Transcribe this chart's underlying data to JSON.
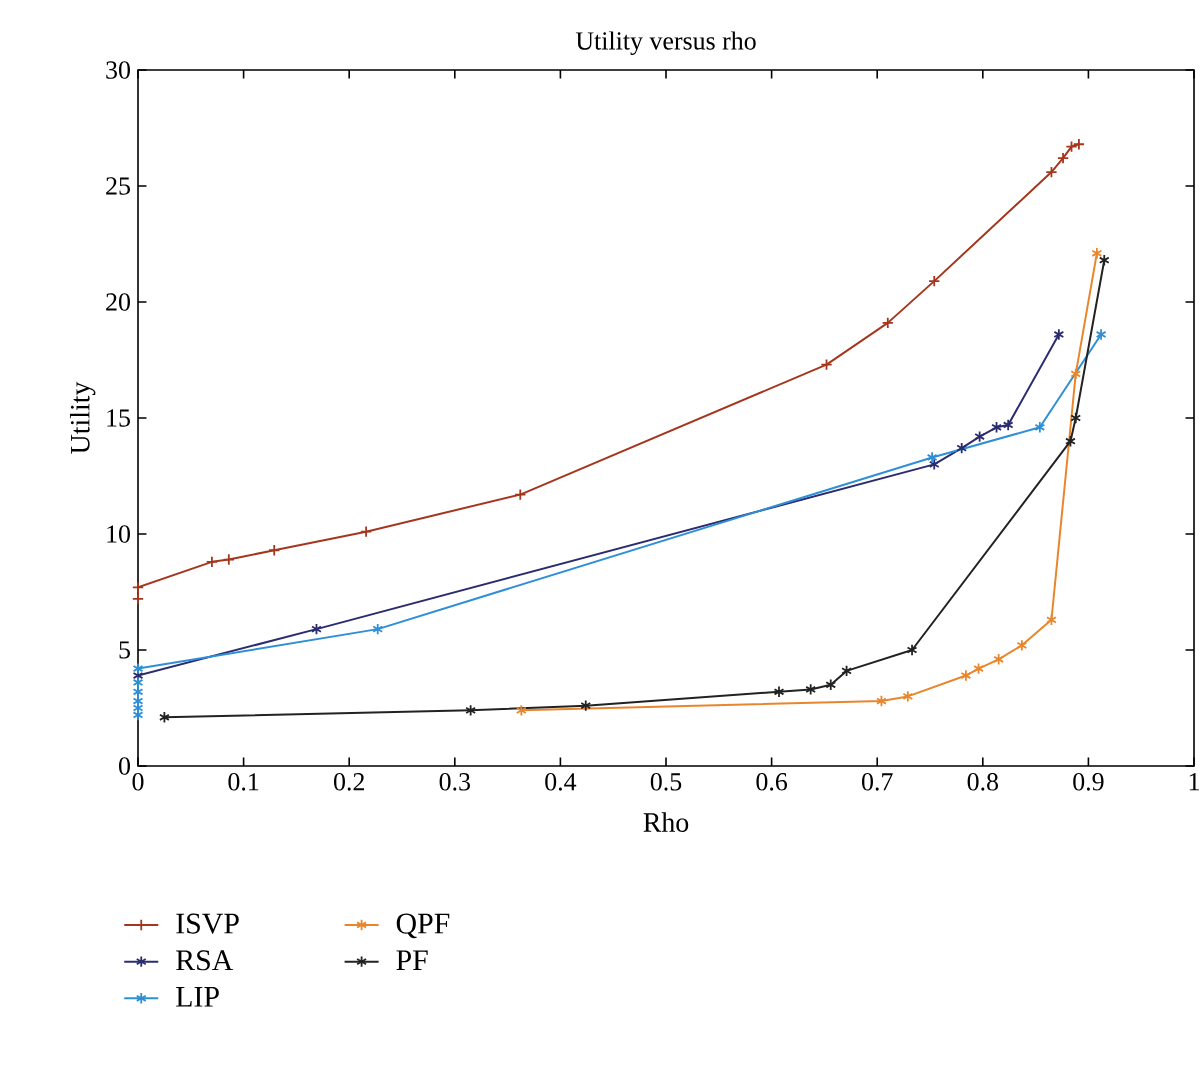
{
  "chart_data": {
    "type": "line",
    "title": "Utility versus rho",
    "xlabel": "Rho",
    "ylabel": "Utility",
    "xlim": [
      0,
      1
    ],
    "ylim": [
      0,
      30
    ],
    "xticks": [
      0,
      0.1,
      0.2,
      0.3,
      0.4,
      0.5,
      0.6,
      0.7,
      0.8,
      0.9,
      1
    ],
    "yticks": [
      0,
      5,
      10,
      15,
      20,
      25,
      30
    ],
    "grid": false,
    "legend": "bottom",
    "line_style": "solid",
    "series": [
      {
        "name": "ISVP",
        "color": "#a5361e",
        "marker": "cross",
        "x": [
          0,
          0,
          0.07,
          0.086,
          0.129,
          0.216,
          0.362,
          0.652,
          0.71,
          0.754,
          0.865,
          0.876,
          0.884,
          0.891
        ],
        "values": [
          7.2,
          7.7,
          8.8,
          8.9,
          9.3,
          10.1,
          11.7,
          17.3,
          19.1,
          20.9,
          25.6,
          26.2,
          26.7,
          26.8
        ]
      },
      {
        "name": "RSA",
        "color": "#2a2c6f",
        "marker": "cross",
        "x": [
          0,
          0.169,
          0.754,
          0.78,
          0.797,
          0.813,
          0.824,
          0.872
        ],
        "values": [
          3.9,
          5.9,
          13.0,
          13.7,
          14.2,
          14.6,
          14.7,
          18.6
        ]
      },
      {
        "name": "LIP",
        "color": "#2e8fd6",
        "marker": "cross",
        "x": [
          0,
          0,
          0,
          0,
          0,
          0,
          0.227,
          0.752,
          0.854,
          0.912
        ],
        "values": [
          2.2,
          2.5,
          2.8,
          3.2,
          3.6,
          4.2,
          5.9,
          13.3,
          14.6,
          18.6
        ]
      },
      {
        "name": "QPF",
        "color": "#e9862b",
        "marker": "cross",
        "x": [
          0.363,
          0.704,
          0.729,
          0.784,
          0.796,
          0.815,
          0.837,
          0.865,
          0.888,
          0.908
        ],
        "values": [
          2.4,
          2.8,
          3.0,
          3.9,
          4.2,
          4.6,
          5.2,
          6.3,
          16.9,
          22.1
        ]
      },
      {
        "name": "PF",
        "color": "#222222",
        "marker": "cross",
        "x": [
          0.025,
          0.315,
          0.424,
          0.607,
          0.637,
          0.656,
          0.671,
          0.733,
          0.883,
          0.888,
          0.915
        ],
        "values": [
          2.1,
          2.4,
          2.6,
          3.2,
          3.3,
          3.5,
          4.1,
          5.0,
          14.0,
          15.0,
          21.8
        ]
      }
    ]
  }
}
